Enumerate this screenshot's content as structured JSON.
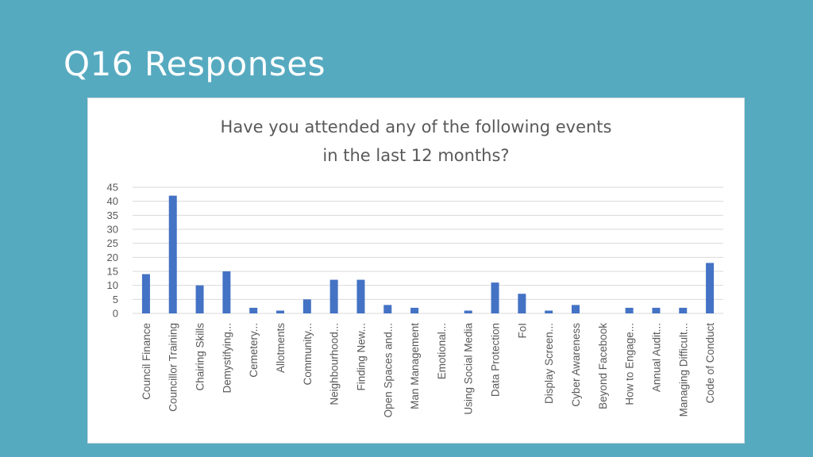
{
  "slide": {
    "title": "Q16 Responses"
  },
  "chart_data": {
    "type": "bar",
    "title_lines": [
      "Have you attended any of the following events",
      "in the last 12 months?"
    ],
    "categories": [
      "Council Finance",
      "Councillor Training",
      "Chairing Skills",
      "Demystifying...",
      "Cemetery...",
      "Allotments",
      "Community...",
      "Neighbourhood...",
      "Finding New...",
      "Open Spaces and...",
      "Man Management",
      "Emotional...",
      "Using Social Media",
      "Data Protection",
      "FoI",
      "Display Screen...",
      "Cyber Awareness",
      "Beyond Facebook",
      "How to Engage...",
      "Annual Audit...",
      "Managing Difficult...",
      "Code of Conduct"
    ],
    "values": [
      14,
      42,
      10,
      15,
      2,
      1,
      5,
      12,
      12,
      3,
      2,
      0,
      1,
      11,
      7,
      1,
      3,
      0,
      2,
      2,
      2,
      18
    ],
    "ylim": [
      0,
      45
    ],
    "yticks": [
      0,
      5,
      10,
      15,
      20,
      25,
      30,
      35,
      40,
      45
    ],
    "grid": true,
    "bar_color": "#4472c4"
  }
}
